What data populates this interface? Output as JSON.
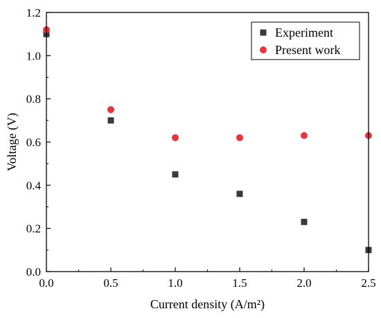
{
  "chart_data": {
    "type": "scatter",
    "xlabel": "Current density (A/m²)",
    "ylabel": "Voltage (V)",
    "xlim": [
      0,
      2.5
    ],
    "ylim": [
      0,
      1.2
    ],
    "x_ticks": [
      "0.0",
      "0.5",
      "1.0",
      "1.5",
      "2.0",
      "2.5"
    ],
    "y_ticks": [
      "0.0",
      "0.2",
      "0.4",
      "0.6",
      "0.8",
      "1.0",
      "1.2"
    ],
    "grid": false,
    "legend_position": "top-right",
    "series": [
      {
        "name": "Experiment",
        "marker": "square",
        "color": "#3a3a3a",
        "x": [
          0,
          0.5,
          1.0,
          1.5,
          2.0,
          2.5
        ],
        "y": [
          1.1,
          0.7,
          0.45,
          0.36,
          0.23,
          0.1
        ]
      },
      {
        "name": "Present work",
        "marker": "circle",
        "color": "#e8343a",
        "x": [
          0,
          0.5,
          1.0,
          1.5,
          2.0,
          2.5
        ],
        "y": [
          1.12,
          0.75,
          0.62,
          0.62,
          0.63,
          0.63
        ]
      }
    ]
  }
}
